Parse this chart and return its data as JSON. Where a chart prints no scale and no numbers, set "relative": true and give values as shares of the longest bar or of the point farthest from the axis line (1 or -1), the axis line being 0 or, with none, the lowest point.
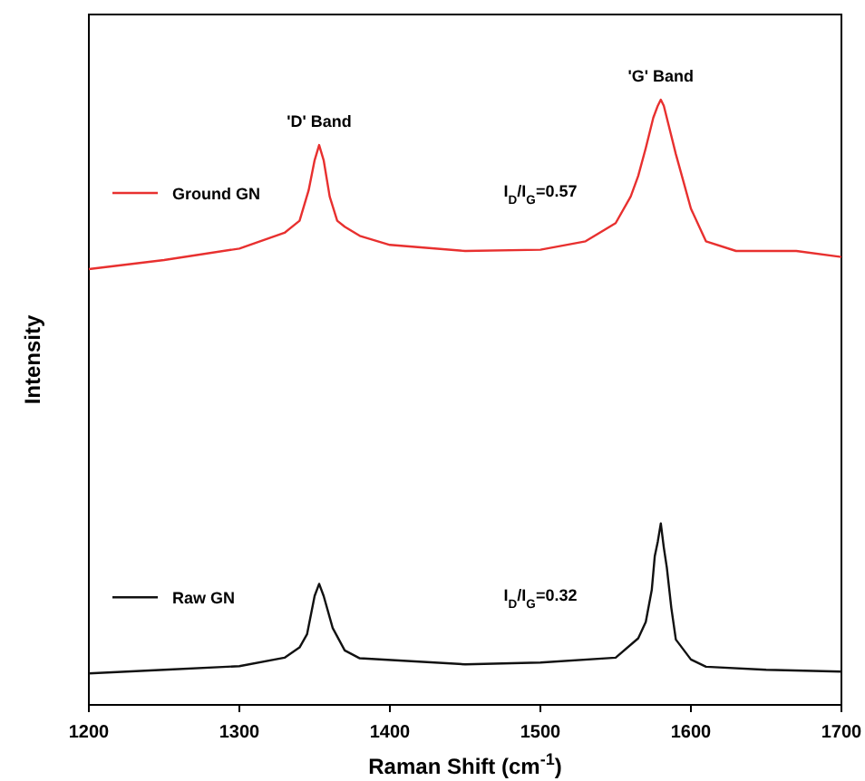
{
  "chart_data": {
    "type": "line",
    "relative": true,
    "xlabel": "Raman Shift (cm$^{-1}$)",
    "ylabel": "Intensity",
    "xlim": [
      1200,
      1700
    ],
    "xticks": [
      1200,
      1300,
      1400,
      1500,
      1600,
      1700
    ],
    "legend": "left",
    "grid": false,
    "marker": "none",
    "line_style": "solid",
    "series": [
      {
        "name": "Ground GN",
        "color": "#e8302f",
        "x": [
          1200,
          1250,
          1300,
          1330,
          1340,
          1346,
          1350,
          1353,
          1356,
          1360,
          1365,
          1370,
          1380,
          1400,
          1450,
          1500,
          1530,
          1550,
          1560,
          1565,
          1570,
          1575,
          1578,
          1580,
          1582,
          1585,
          1590,
          1595,
          1600,
          1610,
          1630,
          1650,
          1670,
          1700
        ],
        "values": [
          0.72,
          0.735,
          0.754,
          0.78,
          0.8,
          0.85,
          0.9,
          0.925,
          0.9,
          0.84,
          0.8,
          0.79,
          0.775,
          0.76,
          0.75,
          0.752,
          0.766,
          0.796,
          0.84,
          0.874,
          0.92,
          0.97,
          0.99,
          1.0,
          0.99,
          0.96,
          0.91,
          0.865,
          0.82,
          0.766,
          0.75,
          0.75,
          0.75,
          0.74
        ]
      },
      {
        "name": "Raw GN",
        "color": "#111111",
        "x": [
          1200,
          1250,
          1300,
          1330,
          1340,
          1345,
          1350,
          1353,
          1356,
          1362,
          1370,
          1380,
          1450,
          1500,
          1550,
          1565,
          1570,
          1574,
          1576,
          1578,
          1580,
          1582,
          1584,
          1587,
          1590,
          1600,
          1610,
          1650,
          1700
        ],
        "values": [
          0.052,
          0.058,
          0.064,
          0.078,
          0.095,
          0.117,
          0.18,
          0.2,
          0.18,
          0.127,
          0.09,
          0.077,
          0.067,
          0.07,
          0.078,
          0.11,
          0.137,
          0.19,
          0.246,
          0.27,
          0.3,
          0.26,
          0.227,
          0.16,
          0.108,
          0.075,
          0.063,
          0.058,
          0.055
        ]
      }
    ],
    "annotations": [
      {
        "text": "'D' Band",
        "x": 1353,
        "y": 0.925
      },
      {
        "text": "'G' Band",
        "x": 1580,
        "y": 1.0
      },
      "I$_{D}$/I$_{G}$=0.57",
      "I$_{D}$/I$_{G}$=0.32"
    ]
  }
}
